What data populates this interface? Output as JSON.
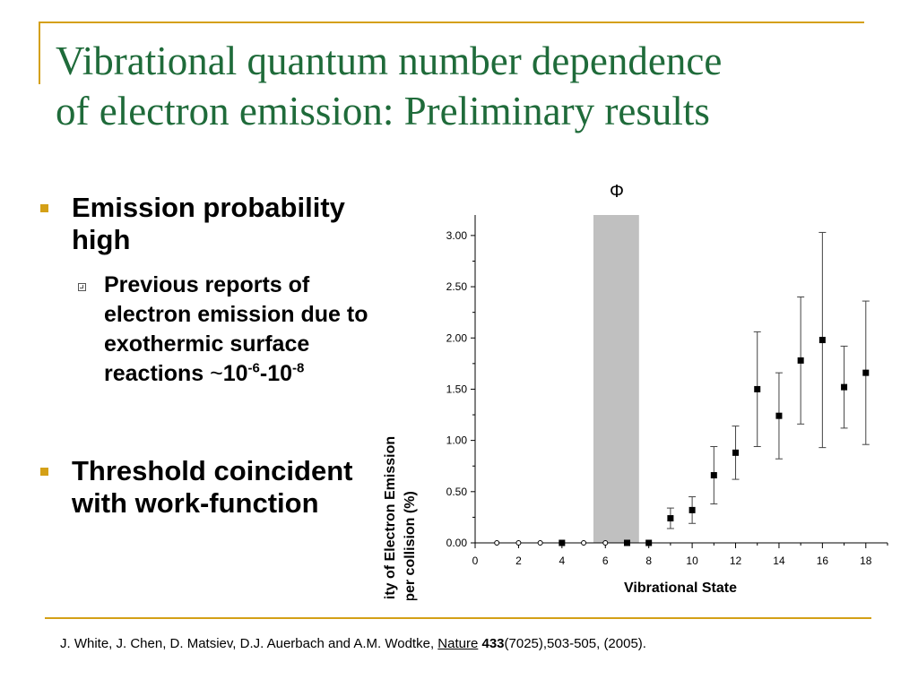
{
  "slide": {
    "title_line1": "Vibrational quantum number dependence",
    "title_line2": "of electron emission: Preliminary results"
  },
  "bullets": {
    "b1": "Emission probability high",
    "b1_sub_text": "Previous reports of electron emission due to exothermic surface reactions",
    "b1_sub_tilde": "~",
    "b1_sub_base1": "10",
    "b1_sub_exp1": "-6",
    "b1_sub_dash": "-",
    "b1_sub_base2": "10",
    "b1_sub_exp2": "-8",
    "b2": "Threshold coincident with work-function"
  },
  "reference": {
    "authors": "J. White, J. Chen, D. Matsiev, D.J. Auerbach and A.M. Wodtke, ",
    "journal": "Nature",
    "volume": "433",
    "rest": "(7025),503-505, (2005)."
  },
  "colors": {
    "title": "#1f6b3a",
    "accent": "#d4a017",
    "band": "#c0c0c0"
  },
  "chart_data": {
    "type": "scatter",
    "xlabel": "Vibrational State",
    "ylabel": "Probability of Electron Emission per collision (%)",
    "ylabel_line1": "Probability of Electron Emission",
    "ylabel_line2": "per collision (%)",
    "annotation": "Φ",
    "xlim": [
      0,
      19
    ],
    "ylim": [
      0,
      3.2
    ],
    "xticks": [
      0,
      2,
      4,
      6,
      8,
      10,
      12,
      14,
      16,
      18
    ],
    "yticks": [
      0.0,
      0.5,
      1.0,
      1.5,
      2.0,
      2.5,
      3.0
    ],
    "ytick_labels": [
      "0.00",
      "0.50",
      "1.00",
      "1.50",
      "2.00",
      "2.50",
      "3.00"
    ],
    "band": {
      "x_from": 5.45,
      "x_to": 7.55
    },
    "x": [
      1,
      2,
      3,
      4,
      5,
      6,
      7,
      8,
      9,
      10,
      11,
      12,
      13,
      14,
      15,
      16,
      17,
      18
    ],
    "y": [
      0,
      0,
      0,
      0,
      0,
      0,
      0,
      0,
      0.24,
      0.32,
      0.66,
      0.88,
      1.5,
      1.24,
      1.78,
      1.98,
      1.52,
      1.66
    ],
    "filled": [
      false,
      false,
      false,
      true,
      false,
      false,
      true,
      true,
      true,
      true,
      true,
      true,
      true,
      true,
      true,
      true,
      true,
      true
    ],
    "error": [
      0,
      0,
      0,
      0,
      0,
      0,
      0,
      0,
      0.1,
      0.13,
      0.28,
      0.26,
      0.56,
      0.42,
      0.62,
      1.05,
      0.4,
      0.7
    ]
  }
}
